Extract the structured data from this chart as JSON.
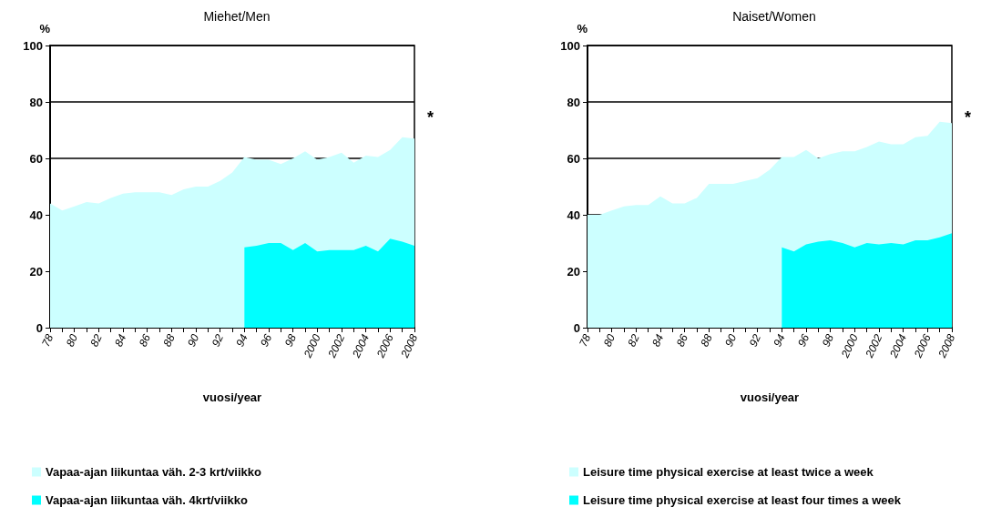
{
  "chart_data": [
    {
      "type": "area",
      "title": "Miehet/Men",
      "xlabel": "vuosi/year",
      "ylabel": "%",
      "annotations": [
        "*"
      ],
      "categories": [
        "78",
        null,
        "80",
        null,
        "82",
        null,
        "84",
        null,
        "86",
        null,
        "88",
        null,
        "90",
        null,
        "92",
        null,
        "94",
        null,
        "96",
        null,
        "98",
        null,
        "2000",
        null,
        "2002",
        null,
        "2004",
        null,
        "2006",
        null,
        "2008"
      ],
      "series": [
        {
          "name": "Vapaa-ajan liikuntaa väh. 2-3 krt/viikko",
          "color": "#ccffff",
          "values": [
            44,
            41.5,
            43,
            44.5,
            44,
            46,
            47.5,
            48,
            48,
            48,
            47,
            49,
            50,
            50,
            52,
            55,
            60.5,
            59.5,
            59.5,
            58,
            60,
            62.5,
            59.5,
            60.5,
            62,
            58.5,
            61,
            60.5,
            63,
            67.5,
            67
          ]
        },
        {
          "name": "Vapaa-ajan liikuntaa väh. 4krt/viikko",
          "color": "#00ffff",
          "values": [
            null,
            null,
            null,
            null,
            null,
            null,
            null,
            null,
            null,
            null,
            null,
            null,
            null,
            null,
            null,
            null,
            28.5,
            29,
            30,
            30,
            27.5,
            30,
            27,
            27.5,
            27.5,
            27.5,
            29,
            27,
            31.5,
            30.5,
            29
          ]
        }
      ],
      "ylim": [
        0,
        100
      ],
      "yticks": [
        0,
        20,
        40,
        60,
        80,
        100
      ],
      "grid": "y",
      "legend": "bottom"
    },
    {
      "type": "area",
      "title": "Naiset/Women",
      "xlabel": "vuosi/year",
      "ylabel": "%",
      "annotations": [
        "*"
      ],
      "categories": [
        "78",
        null,
        "80",
        null,
        "82",
        null,
        "84",
        null,
        "86",
        null,
        "88",
        null,
        "90",
        null,
        "92",
        null,
        "94",
        null,
        "96",
        null,
        "98",
        null,
        "2000",
        null,
        "2002",
        null,
        "2004",
        null,
        "2006",
        null,
        "2008"
      ],
      "series": [
        {
          "name": "Leisure time physical exercise at least twice a week",
          "color": "#ccffff",
          "values": [
            40,
            40,
            41.5,
            43,
            43.5,
            43.5,
            46.5,
            44,
            44,
            46,
            51,
            51,
            51,
            52,
            53,
            56,
            60.5,
            60.5,
            63,
            60,
            61.5,
            62.5,
            62.5,
            64,
            66,
            65,
            65,
            67.5,
            68,
            73,
            72.5
          ]
        },
        {
          "name": "Leisure time physical exercise at least four times a week",
          "color": "#00ffff",
          "values": [
            null,
            null,
            null,
            null,
            null,
            null,
            null,
            null,
            null,
            null,
            null,
            null,
            null,
            null,
            null,
            null,
            28.5,
            27,
            29.5,
            30.5,
            31,
            30,
            28.5,
            30,
            29.5,
            30,
            29.5,
            31,
            31,
            32,
            33.5
          ]
        }
      ],
      "ylim": [
        0,
        100
      ],
      "yticks": [
        0,
        20,
        40,
        60,
        80,
        100
      ],
      "grid": "y",
      "legend": "bottom"
    }
  ]
}
